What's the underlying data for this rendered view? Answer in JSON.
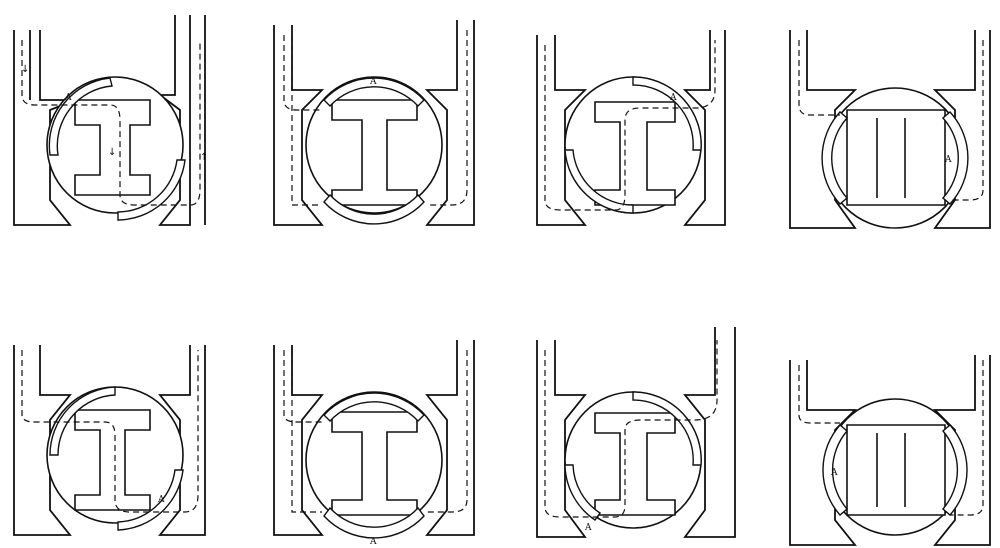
{
  "figure": {
    "part_label": "A",
    "panels": [
      {
        "id": 1,
        "seal": "left",
        "flowArrows": true
      },
      {
        "id": 2,
        "seal": "top",
        "flowArrows": false
      },
      {
        "id": 3,
        "seal": "right",
        "flowArrows": false
      },
      {
        "id": 4,
        "seal": "right",
        "flowArrows": false
      },
      {
        "id": 5,
        "seal": "bottom-right",
        "flowArrows": false
      },
      {
        "id": 6,
        "seal": "bottom",
        "flowArrows": false
      },
      {
        "id": 7,
        "seal": "bottom-left",
        "flowArrows": false
      },
      {
        "id": 8,
        "seal": "left",
        "flowArrows": false
      }
    ]
  }
}
